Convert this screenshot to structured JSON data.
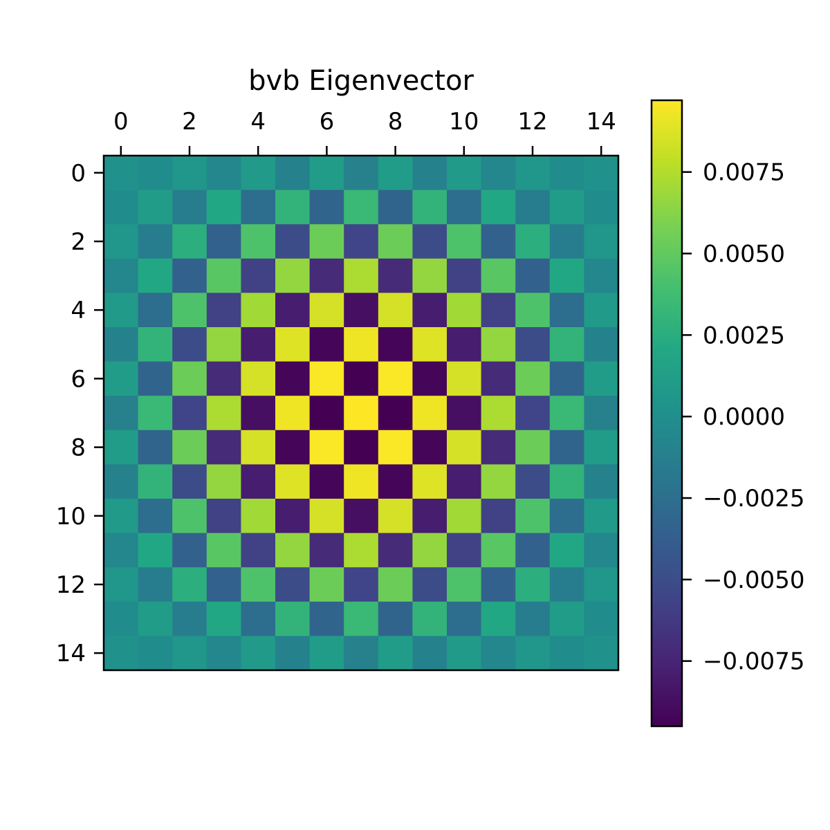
{
  "chart_data": {
    "type": "heatmap",
    "title": "bvb Eigenvector",
    "xlabel": "",
    "ylabel": "",
    "x_ticks": [
      0,
      2,
      4,
      6,
      8,
      10,
      12,
      14
    ],
    "y_ticks": [
      0,
      2,
      4,
      6,
      8,
      10,
      12,
      14
    ],
    "x_tick_position": "top",
    "colormap": "viridis",
    "vmin": -0.0095,
    "vmax": 0.0097,
    "colorbar_ticks": [
      "0.0075",
      "0.0050",
      "0.0025",
      "0.0000",
      "−0.0025",
      "−0.0050",
      "−0.0075"
    ],
    "colorbar_tick_values": [
      0.0075,
      0.005,
      0.0025,
      0.0,
      -0.0025,
      -0.005,
      -0.0075
    ],
    "grid": false,
    "values": [
      [
        0.0003,
        -0.0002,
        0.0006,
        -0.0006,
        0.0009,
        -0.001,
        0.0011,
        -0.0011,
        0.0011,
        -0.001,
        0.0009,
        -0.0006,
        0.0006,
        -0.0002,
        0.0003
      ],
      [
        -0.0002,
        0.0011,
        -0.0014,
        0.002,
        -0.0026,
        0.003,
        -0.0033,
        0.0034,
        -0.0033,
        0.003,
        -0.0026,
        0.002,
        -0.0014,
        0.0011,
        -0.0002
      ],
      [
        0.0006,
        -0.0014,
        0.0026,
        -0.0035,
        0.0043,
        -0.005,
        0.0054,
        -0.0055,
        0.0054,
        -0.005,
        0.0043,
        -0.0035,
        0.0026,
        -0.0014,
        0.0006
      ],
      [
        -0.0006,
        0.002,
        -0.0035,
        0.0047,
        -0.0058,
        0.0066,
        -0.0071,
        0.0073,
        -0.0071,
        0.0066,
        -0.0058,
        0.0047,
        -0.0035,
        0.002,
        -0.0006
      ],
      [
        0.0009,
        -0.0026,
        0.0043,
        -0.0058,
        0.007,
        -0.0079,
        0.0085,
        -0.0087,
        0.0085,
        -0.0079,
        0.007,
        -0.0058,
        0.0043,
        -0.0026,
        0.0009
      ],
      [
        -0.001,
        0.003,
        -0.005,
        0.0066,
        -0.0079,
        0.0088,
        -0.0092,
        0.0093,
        -0.0092,
        0.0088,
        -0.0079,
        0.0066,
        -0.005,
        0.003,
        -0.001
      ],
      [
        0.0011,
        -0.0033,
        0.0054,
        -0.0071,
        0.0085,
        -0.0092,
        0.0096,
        -0.0095,
        0.0096,
        -0.0092,
        0.0085,
        -0.0071,
        0.0054,
        -0.0033,
        0.0011
      ],
      [
        -0.0011,
        0.0034,
        -0.0055,
        0.0073,
        -0.0087,
        0.0093,
        -0.0095,
        0.0097,
        -0.0095,
        0.0093,
        -0.0087,
        0.0073,
        -0.0055,
        0.0034,
        -0.0011
      ],
      [
        0.0011,
        -0.0033,
        0.0054,
        -0.0071,
        0.0085,
        -0.0092,
        0.0096,
        -0.0095,
        0.0096,
        -0.0092,
        0.0085,
        -0.0071,
        0.0054,
        -0.0033,
        0.0011
      ],
      [
        -0.001,
        0.003,
        -0.005,
        0.0066,
        -0.0079,
        0.0088,
        -0.0092,
        0.0093,
        -0.0092,
        0.0088,
        -0.0079,
        0.0066,
        -0.005,
        0.003,
        -0.001
      ],
      [
        0.0009,
        -0.0026,
        0.0043,
        -0.0058,
        0.007,
        -0.0079,
        0.0085,
        -0.0087,
        0.0085,
        -0.0079,
        0.007,
        -0.0058,
        0.0043,
        -0.0026,
        0.0009
      ],
      [
        -0.0006,
        0.002,
        -0.0035,
        0.0047,
        -0.0058,
        0.0066,
        -0.0071,
        0.0073,
        -0.0071,
        0.0066,
        -0.0058,
        0.0047,
        -0.0035,
        0.002,
        -0.0006
      ],
      [
        0.0006,
        -0.0014,
        0.0026,
        -0.0035,
        0.0043,
        -0.005,
        0.0054,
        -0.0055,
        0.0054,
        -0.005,
        0.0043,
        -0.0035,
        0.0026,
        -0.0014,
        0.0006
      ],
      [
        -0.0002,
        0.0011,
        -0.0014,
        0.002,
        -0.0026,
        0.003,
        -0.0033,
        0.0034,
        -0.0033,
        0.003,
        -0.0026,
        0.002,
        -0.0014,
        0.0011,
        -0.0002
      ],
      [
        0.0003,
        -0.0002,
        0.0006,
        -0.0006,
        0.0009,
        -0.001,
        0.0011,
        -0.0011,
        0.0011,
        -0.001,
        0.0009,
        -0.0006,
        0.0006,
        -0.0002,
        0.0003
      ]
    ]
  }
}
